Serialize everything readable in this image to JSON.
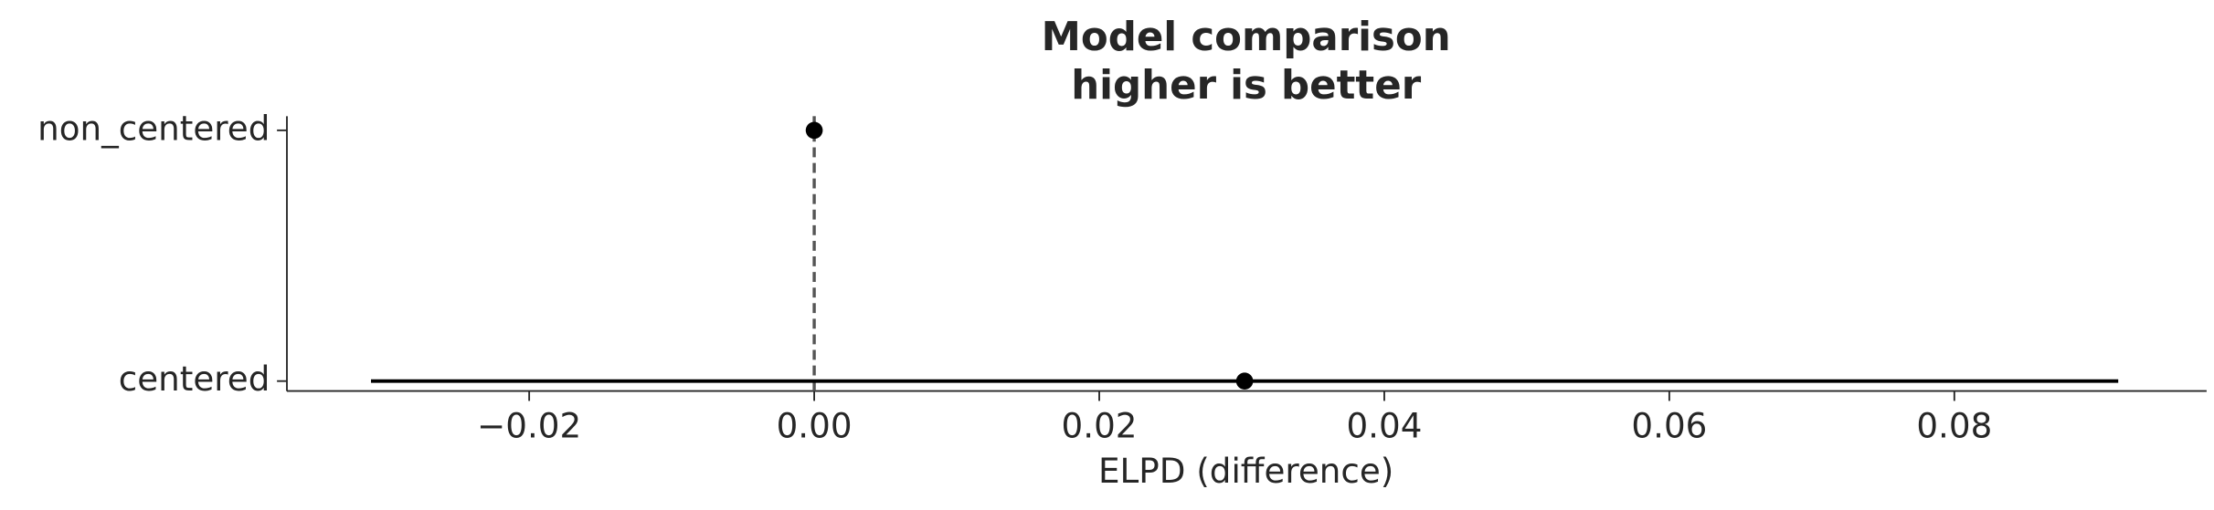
{
  "chart_data": {
    "type": "errorbar",
    "title": "Model comparison",
    "subtitle": "higher is better",
    "xlabel": "ELPD (difference)",
    "categories": [
      "non_centered",
      "centered"
    ],
    "values": [
      0,
      0.0302
    ],
    "errors": [
      0,
      0.0613
    ],
    "color": "#000000",
    "xlim": [
      -0.037,
      0.0977
    ],
    "xticks": [
      {
        "value": -0.02,
        "label": "−0.02"
      },
      {
        "value": 0,
        "label": "0.00"
      },
      0.02,
      0.04,
      0.06,
      0.08
    ]
  }
}
